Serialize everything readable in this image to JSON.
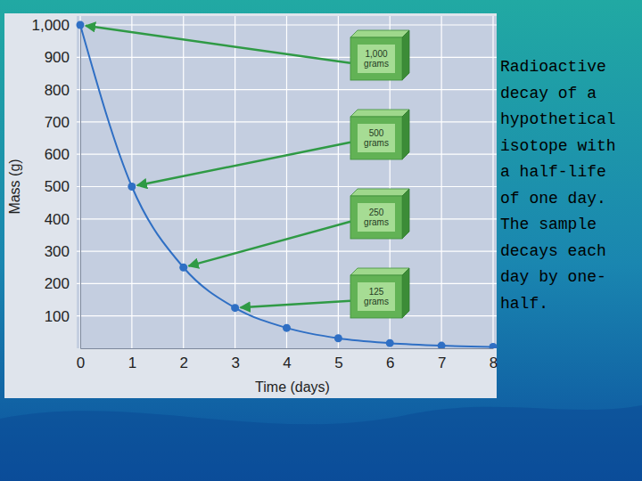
{
  "chart_data": {
    "type": "line",
    "caption": "Radioactive decay of a hypothetical isotope with a half-life of one day. The sample decays each day by one-half.",
    "x_label": "Time (days)",
    "y_label": "Mass (g)",
    "x": [
      0,
      1,
      2,
      3,
      4,
      5,
      6,
      7,
      8
    ],
    "values": [
      1000,
      500,
      250,
      125,
      63,
      31,
      16,
      8,
      4
    ],
    "color": "#2f6fc4",
    "marker": "circle",
    "xlim": [
      0,
      8
    ],
    "ylim": [
      0,
      1000
    ],
    "xticks": [
      0,
      1,
      2,
      3,
      4,
      5,
      6,
      7,
      8
    ],
    "yticks": [
      100,
      200,
      300,
      400,
      500,
      600,
      700,
      800,
      900,
      {
        "value": 1000,
        "label": "1,000"
      }
    ],
    "grid": true,
    "annotations": [
      {
        "text": "1,000 grams",
        "x": 0
      },
      {
        "text": "500 grams",
        "x": 1
      },
      {
        "text": "250 grams",
        "x": 2
      },
      {
        "text": "125 grams",
        "x": 3
      }
    ]
  }
}
